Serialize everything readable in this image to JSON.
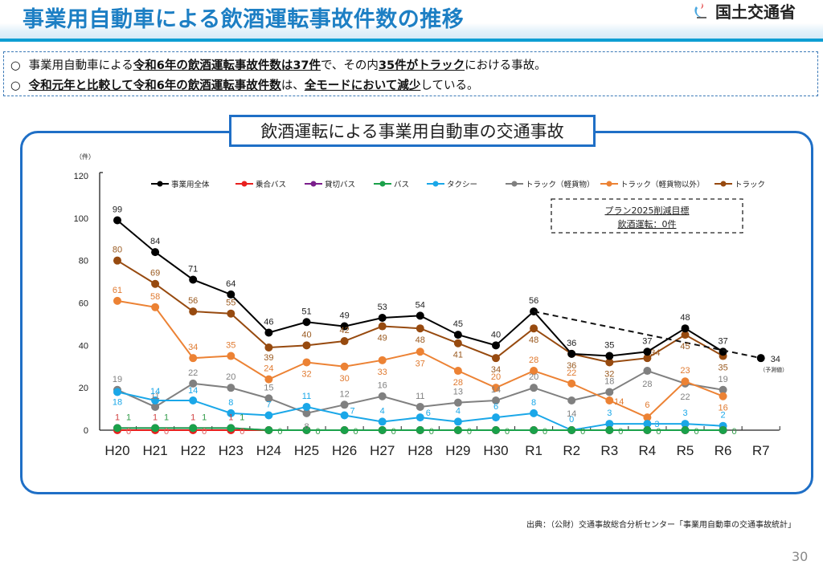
{
  "header": {
    "title": "事業用自動車による飲酒運転事故件数の推移",
    "logo_icon": "mlit-logo-icon",
    "logo_text": "国土交通省"
  },
  "summary": {
    "bullet": "○",
    "line1": [
      {
        "text": "事業用自動車による",
        "u": false
      },
      {
        "text": "令和6年の飲酒運転事故件数は37件",
        "u": true
      },
      {
        "text": "で、その内",
        "u": false
      },
      {
        "text": "35件がトラック",
        "u": true
      },
      {
        "text": "における事故。",
        "u": false
      }
    ],
    "line2": [
      {
        "text": "令和元年と比較して令和6年の飲酒運転事故件数",
        "u": true
      },
      {
        "text": "は、",
        "u": false
      },
      {
        "text": "全モードにおいて減少",
        "u": true
      },
      {
        "text": "している。",
        "u": false
      }
    ]
  },
  "chart_title": "飲酒運転による事業用自動車の交通事故",
  "source": "出典：（公財）交通事故総合分析センター「事業用自動車の交通事故統計」",
  "page_number": "30",
  "chart_data": {
    "type": "line",
    "title": "飲酒運転による事業用自動車の交通事故",
    "ylabel": "（件）",
    "xlabel": "",
    "ylim": [
      0,
      120
    ],
    "yticks": [
      0,
      20,
      40,
      60,
      80,
      100,
      120
    ],
    "categories": [
      "H20",
      "H21",
      "H22",
      "H23",
      "H24",
      "H25",
      "H26",
      "H27",
      "H28",
      "H29",
      "H30",
      "R1",
      "R2",
      "R3",
      "R4",
      "R5",
      "R6",
      "R7"
    ],
    "legend_position": "top",
    "grid": false,
    "series": [
      {
        "name": "事業用全体",
        "color": "#000000",
        "values": [
          99,
          84,
          71,
          64,
          46,
          51,
          49,
          53,
          54,
          45,
          40,
          56,
          36,
          35,
          37,
          48,
          37,
          null
        ],
        "label_color": "#222222"
      },
      {
        "name": "乗合バス",
        "color": "#e8201e",
        "values": [
          0,
          0,
          0,
          0,
          0,
          0,
          0,
          0,
          0,
          0,
          0,
          0,
          0,
          0,
          0,
          0,
          0,
          null
        ],
        "label_color": "#e06060"
      },
      {
        "name": "貸切バス",
        "color": "#7b1e8c",
        "values": [
          1,
          1,
          1,
          1,
          0,
          0,
          0,
          0,
          0,
          0,
          0,
          0,
          0,
          0,
          0,
          0,
          0,
          null
        ],
        "label_color": "#d04040"
      },
      {
        "name": "バス",
        "color": "#1aa14a",
        "values": [
          1,
          1,
          1,
          1,
          0,
          0,
          0,
          0,
          0,
          0,
          0,
          0,
          0,
          0,
          0,
          0,
          0,
          null
        ],
        "label_color": "#2e9a46"
      },
      {
        "name": "タクシー",
        "color": "#1aa7e8",
        "values": [
          18,
          14,
          14,
          8,
          7,
          11,
          7,
          4,
          6,
          4,
          6,
          8,
          0,
          3,
          3,
          3,
          2,
          null
        ],
        "label_color": "#1aa7e8"
      },
      {
        "name": "トラック（軽貨物）",
        "color": "#808080",
        "values": [
          19,
          11,
          22,
          20,
          15,
          8,
          12,
          16,
          11,
          13,
          14,
          20,
          14,
          18,
          28,
          22,
          19,
          null
        ],
        "label_color": "#808080"
      },
      {
        "name": "トラック（軽貨物以外）",
        "color": "#ec8234",
        "values": [
          61,
          58,
          34,
          35,
          24,
          32,
          30,
          33,
          37,
          28,
          20,
          28,
          22,
          14,
          6,
          23,
          16,
          null
        ],
        "label_color": "#e07a30"
      },
      {
        "name": "トラック",
        "color": "#974a0f",
        "values": [
          80,
          69,
          56,
          55,
          39,
          40,
          42,
          49,
          48,
          41,
          34,
          48,
          36,
          32,
          34,
          45,
          35,
          null
        ],
        "label_color": "#9a5a20"
      }
    ],
    "projection": {
      "from_category": "R1",
      "from_value": 56,
      "to_category": "R7",
      "to_value": 34,
      "label": "34",
      "note": "（予測値）",
      "style": "dashed"
    },
    "annotation_box": {
      "line1": "プラン2025削減目標",
      "line2": "飲酒運転：0件"
    }
  }
}
